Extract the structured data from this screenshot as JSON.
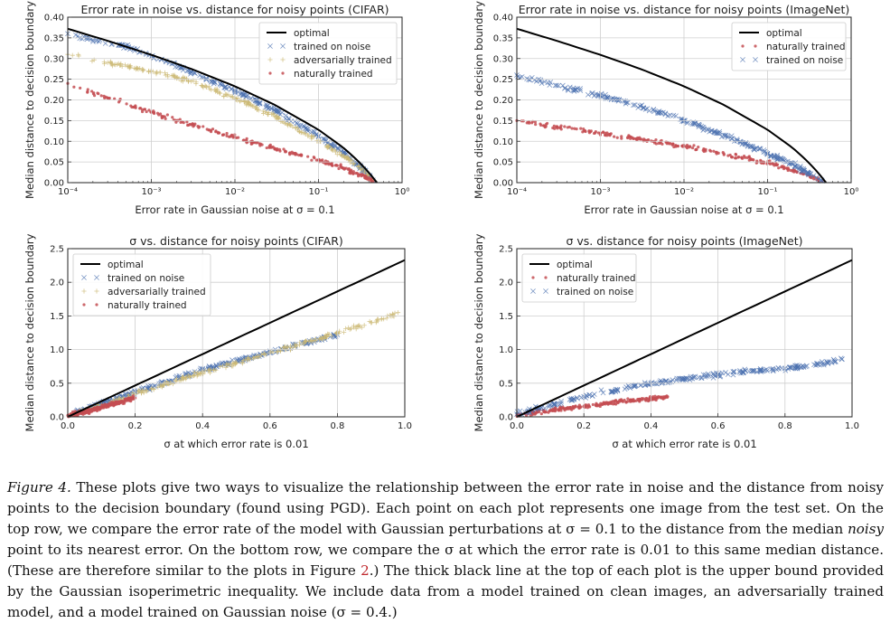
{
  "figure": {
    "panels": [
      {
        "id": "p1",
        "title": "Error rate in noise vs. distance for noisy points (CIFAR)",
        "xlabel": "Error rate in Gaussian noise at σ = 0.1",
        "ylabel": "Median distance to decision boundary",
        "xscale": "log",
        "xlim": [
          0.0001,
          1
        ],
        "ylim": [
          0,
          0.4
        ],
        "xticks": [
          "10⁻⁴",
          "10⁻³",
          "10⁻²",
          "10⁻¹",
          "10⁰"
        ],
        "yticks": [
          "0.00",
          "0.05",
          "0.10",
          "0.15",
          "0.20",
          "0.25",
          "0.30",
          "0.35",
          "0.40"
        ],
        "legend_position": "top-right",
        "legend": [
          "optimal",
          "trained on noise",
          "adversarially trained",
          "naturally trained"
        ]
      },
      {
        "id": "p2",
        "title": "Error rate in noise vs. distance for noisy points (ImageNet)",
        "xlabel": "Error rate in Gaussian noise at σ = 0.1",
        "ylabel": "Median distance to decision boundary",
        "xscale": "log",
        "xlim": [
          0.0001,
          1
        ],
        "ylim": [
          0,
          0.4
        ],
        "xticks": [
          "10⁻⁴",
          "10⁻³",
          "10⁻²",
          "10⁻¹",
          "10⁰"
        ],
        "yticks": [
          "0.00",
          "0.05",
          "0.10",
          "0.15",
          "0.20",
          "0.25",
          "0.30",
          "0.35",
          "0.40"
        ],
        "legend_position": "top-right",
        "legend": [
          "optimal",
          "naturally trained",
          "trained on noise"
        ]
      },
      {
        "id": "p3",
        "title": "σ vs. distance for noisy points (CIFAR)",
        "xlabel": "σ at which error rate is 0.01",
        "ylabel": "Median distance to decision boundary",
        "xscale": "linear",
        "xlim": [
          0,
          1
        ],
        "ylim": [
          0,
          2.5
        ],
        "xticks": [
          "0.0",
          "0.2",
          "0.4",
          "0.6",
          "0.8",
          "1.0"
        ],
        "yticks": [
          "0.0",
          "0.5",
          "1.0",
          "1.5",
          "2.0",
          "2.5"
        ],
        "legend_position": "top-left",
        "legend": [
          "optimal",
          "trained on noise",
          "adversarially trained",
          "naturally trained"
        ]
      },
      {
        "id": "p4",
        "title": "σ vs. distance for noisy points (ImageNet)",
        "xlabel": "σ at which error rate is 0.01",
        "ylabel": "Median distance to decision boundary",
        "xscale": "linear",
        "xlim": [
          0,
          1
        ],
        "ylim": [
          0,
          2.5
        ],
        "xticks": [
          "0.0",
          "0.2",
          "0.4",
          "0.6",
          "0.8",
          "1.0"
        ],
        "yticks": [
          "0.0",
          "0.5",
          "1.0",
          "1.5",
          "2.0",
          "2.5"
        ],
        "legend_position": "top-left",
        "legend": [
          "optimal",
          "naturally trained",
          "trained on noise"
        ]
      }
    ]
  },
  "caption": {
    "label": "Figure 4.",
    "part1": " These plots give two ways to visualize the relationship between the error rate in noise and the distance from noisy points to the decision boundary (found using PGD). Each point on each plot represents one image from the test set. On the top row, we compare the error rate of the model with Gaussian perturbations at σ = 0.1 to the distance from the median ",
    "noisy": "noisy",
    "part2": " point to its nearest error. On the bottom row, we compare the σ at which the error rate is 0.01 to this same median distance. (These are therefore similar to the plots in Figure ",
    "ref": "2",
    "part3": ".) The thick black line at the top of each plot is the upper bound provided by the Gaussian isoperimetric inequality. We include data from a model trained on clean images, an adversarially trained model, and a model trained on Gaussian noise (σ = 0.4.)"
  },
  "series_style": {
    "optimal": {
      "color": "#000000",
      "marker": "line"
    },
    "trained on noise": {
      "color": "#4c72b0",
      "marker": "x"
    },
    "adversarially trained": {
      "color": "#ccb974",
      "marker": "+"
    },
    "naturally trained": {
      "color": "#c44e52",
      "marker": "dot"
    }
  },
  "chart_data": [
    {
      "type": "scatter",
      "title": "Error rate in noise vs. distance for noisy points (CIFAR)",
      "xlabel": "Error rate in Gaussian noise at σ = 0.1",
      "ylabel": "Median distance to decision boundary",
      "xscale": "log",
      "xlim": [
        0.0001,
        1
      ],
      "ylim": [
        0,
        0.4
      ],
      "grid": true,
      "legend": "top-right",
      "series": [
        {
          "name": "optimal",
          "kind": "line",
          "x": [
            0.0001,
            0.0003,
            0.001,
            0.003,
            0.01,
            0.03,
            0.1,
            0.2,
            0.3,
            0.4,
            0.5
          ],
          "y": [
            0.372,
            0.343,
            0.309,
            0.275,
            0.233,
            0.188,
            0.128,
            0.084,
            0.052,
            0.025,
            0.0
          ]
        },
        {
          "name": "trained on noise",
          "x": [
            0.0001,
            0.0002,
            0.0005,
            0.001,
            0.003,
            0.01,
            0.03,
            0.1,
            0.2,
            0.3,
            0.45
          ],
          "y": [
            0.36,
            0.345,
            0.33,
            0.305,
            0.268,
            0.222,
            0.175,
            0.113,
            0.072,
            0.043,
            0.006
          ]
        },
        {
          "name": "adversarially trained",
          "x": [
            0.0001,
            0.0003,
            0.001,
            0.003,
            0.01,
            0.03,
            0.1,
            0.2,
            0.3,
            0.45
          ],
          "y": [
            0.31,
            0.29,
            0.27,
            0.245,
            0.205,
            0.16,
            0.1,
            0.065,
            0.04,
            0.005
          ]
        },
        {
          "name": "naturally trained",
          "x": [
            0.0001,
            0.0003,
            0.001,
            0.003,
            0.01,
            0.03,
            0.1,
            0.2,
            0.3,
            0.45
          ],
          "y": [
            0.24,
            0.205,
            0.17,
            0.14,
            0.11,
            0.082,
            0.055,
            0.035,
            0.02,
            0.003
          ]
        }
      ]
    },
    {
      "type": "scatter",
      "title": "Error rate in noise vs. distance for noisy points (ImageNet)",
      "xlabel": "Error rate in Gaussian noise at σ = 0.1",
      "ylabel": "Median distance to decision boundary",
      "xscale": "log",
      "xlim": [
        0.0001,
        1
      ],
      "ylim": [
        0,
        0.4
      ],
      "grid": true,
      "legend": "top-right",
      "series": [
        {
          "name": "optimal",
          "kind": "line",
          "x": [
            0.0001,
            0.0003,
            0.001,
            0.003,
            0.01,
            0.03,
            0.1,
            0.2,
            0.3,
            0.4,
            0.5
          ],
          "y": [
            0.372,
            0.343,
            0.309,
            0.275,
            0.233,
            0.188,
            0.128,
            0.084,
            0.052,
            0.025,
            0.0
          ]
        },
        {
          "name": "naturally trained",
          "x": [
            0.0001,
            0.0003,
            0.001,
            0.003,
            0.01,
            0.03,
            0.1,
            0.2,
            0.3,
            0.45
          ],
          "y": [
            0.15,
            0.135,
            0.12,
            0.105,
            0.088,
            0.07,
            0.048,
            0.03,
            0.018,
            0.003
          ]
        },
        {
          "name": "trained on noise",
          "x": [
            0.0001,
            0.0003,
            0.001,
            0.003,
            0.01,
            0.03,
            0.1,
            0.2,
            0.3,
            0.45
          ],
          "y": [
            0.26,
            0.235,
            0.21,
            0.185,
            0.15,
            0.115,
            0.07,
            0.045,
            0.025,
            0.004
          ]
        }
      ]
    },
    {
      "type": "scatter",
      "title": "σ vs. distance for noisy points (CIFAR)",
      "xlabel": "σ at which error rate is 0.01",
      "ylabel": "Median distance to decision boundary",
      "xlim": [
        0,
        1
      ],
      "ylim": [
        0,
        2.5
      ],
      "grid": true,
      "legend": "top-left",
      "series": [
        {
          "name": "optimal",
          "kind": "line",
          "x": [
            0.0,
            1.0
          ],
          "y": [
            0.0,
            2.33
          ]
        },
        {
          "name": "trained on noise",
          "x": [
            0.02,
            0.1,
            0.2,
            0.3,
            0.4,
            0.5,
            0.6,
            0.7,
            0.8
          ],
          "y": [
            0.05,
            0.2,
            0.37,
            0.53,
            0.7,
            0.83,
            0.95,
            1.1,
            1.22
          ]
        },
        {
          "name": "adversarially trained",
          "x": [
            0.02,
            0.1,
            0.2,
            0.3,
            0.4,
            0.5,
            0.6,
            0.7,
            0.8,
            0.9,
            0.98
          ],
          "y": [
            0.05,
            0.18,
            0.34,
            0.5,
            0.66,
            0.8,
            0.95,
            1.1,
            1.25,
            1.4,
            1.55
          ]
        },
        {
          "name": "naturally trained",
          "x": [
            0.0,
            0.05,
            0.1,
            0.15,
            0.2
          ],
          "y": [
            0.02,
            0.07,
            0.14,
            0.21,
            0.28
          ]
        }
      ]
    },
    {
      "type": "scatter",
      "title": "σ vs. distance for noisy points (ImageNet)",
      "xlabel": "σ at which error rate is 0.01",
      "ylabel": "Median distance to decision boundary",
      "xlim": [
        0,
        1
      ],
      "ylim": [
        0,
        2.5
      ],
      "grid": true,
      "legend": "top-left",
      "series": [
        {
          "name": "optimal",
          "kind": "line",
          "x": [
            0.0,
            1.0
          ],
          "y": [
            0.0,
            2.33
          ]
        },
        {
          "name": "naturally trained",
          "x": [
            0.0,
            0.05,
            0.1,
            0.2,
            0.3,
            0.4,
            0.45
          ],
          "y": [
            0.02,
            0.06,
            0.1,
            0.16,
            0.22,
            0.27,
            0.3
          ]
        },
        {
          "name": "trained on noise",
          "x": [
            0.0,
            0.1,
            0.2,
            0.3,
            0.4,
            0.5,
            0.6,
            0.7,
            0.8,
            0.9,
            0.97
          ],
          "y": [
            0.04,
            0.17,
            0.3,
            0.4,
            0.5,
            0.57,
            0.63,
            0.68,
            0.72,
            0.78,
            0.86
          ]
        }
      ]
    }
  ]
}
